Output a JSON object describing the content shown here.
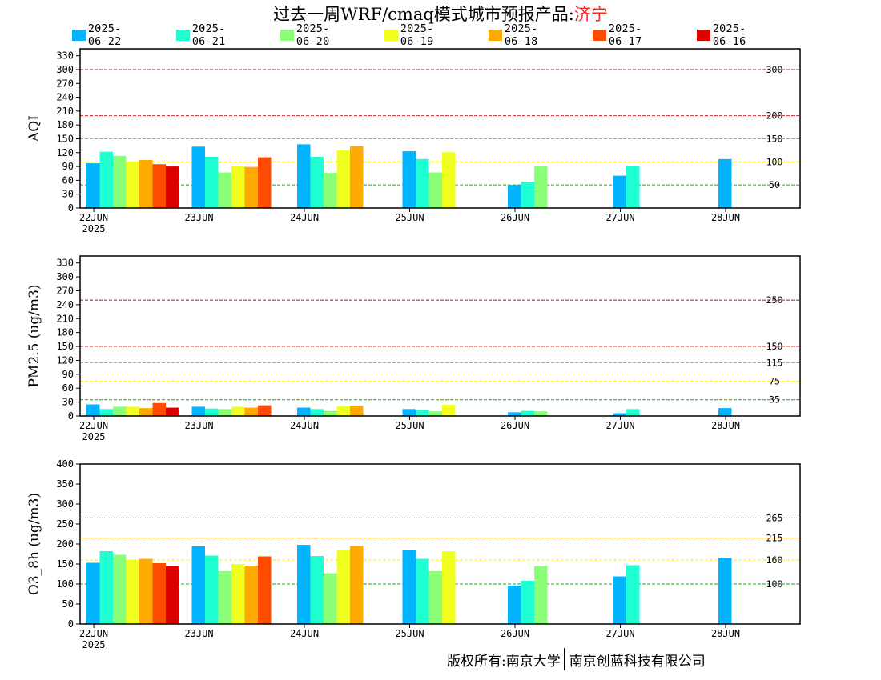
{
  "title": {
    "main": "过去一周WRF/cmaq模式城市预报产品:",
    "city": "济宁"
  },
  "legend": [
    {
      "label": "2025-06-22",
      "color": "#00b4ff"
    },
    {
      "label": "2025-06-21",
      "color": "#1effd2"
    },
    {
      "label": "2025-06-20",
      "color": "#8cff78"
    },
    {
      "label": "2025-06-19",
      "color": "#f0ff1e"
    },
    {
      "label": "2025-06-18",
      "color": "#ffaa00"
    },
    {
      "label": "2025-06-17",
      "color": "#ff4b00"
    },
    {
      "label": "2025-06-16",
      "color": "#dc0000"
    }
  ],
  "footer": {
    "left": "版权所有:南京大学",
    "right": "南京创蓝科技有限公司"
  },
  "chart_data": [
    {
      "type": "bar",
      "ylabel": "AQI",
      "ylim": [
        0,
        345
      ],
      "yticks": [
        0,
        30,
        60,
        90,
        120,
        150,
        180,
        210,
        240,
        270,
        300,
        330
      ],
      "categories": [
        "22JUN",
        "23JUN",
        "24JUN",
        "25JUN",
        "26JUN",
        "27JUN",
        "28JUN"
      ],
      "x_year_label": "2025",
      "thresholds": [
        {
          "value": 300,
          "label": "300",
          "color": "#a01050"
        },
        {
          "value": 200,
          "label": "200",
          "color": "#e02020"
        },
        {
          "value": 150,
          "label": "150",
          "color": "#ff8c00"
        },
        {
          "value": 100,
          "label": "100",
          "color": "#ffee00"
        },
        {
          "value": 50,
          "label": "50",
          "color": "#10b010"
        }
      ],
      "series": [
        {
          "name": "2025-06-22",
          "values": [
            97,
            133,
            138,
            123,
            50,
            70,
            106
          ]
        },
        {
          "name": "2025-06-21",
          "values": [
            122,
            111,
            111,
            106,
            57,
            92,
            null
          ]
        },
        {
          "name": "2025-06-20",
          "values": [
            113,
            77,
            76,
            77,
            90,
            null,
            null
          ]
        },
        {
          "name": "2025-06-19",
          "values": [
            100,
            92,
            125,
            121,
            null,
            null,
            null
          ]
        },
        {
          "name": "2025-06-18",
          "values": [
            104,
            89,
            134,
            null,
            null,
            null,
            null
          ]
        },
        {
          "name": "2025-06-17",
          "values": [
            95,
            110,
            null,
            null,
            null,
            null,
            null
          ]
        },
        {
          "name": "2025-06-16",
          "values": [
            90,
            null,
            null,
            null,
            null,
            null,
            null
          ]
        }
      ]
    },
    {
      "type": "bar",
      "ylabel": "PM2.5 (ug/m3)",
      "ylim": [
        0,
        345
      ],
      "yticks": [
        0,
        30,
        60,
        90,
        120,
        150,
        180,
        210,
        240,
        270,
        300,
        330
      ],
      "categories": [
        "22JUN",
        "23JUN",
        "24JUN",
        "25JUN",
        "26JUN",
        "27JUN",
        "28JUN"
      ],
      "x_year_label": "2025",
      "thresholds": [
        {
          "value": 250,
          "label": "250",
          "color": "#a01050"
        },
        {
          "value": 150,
          "label": "150",
          "color": "#e02020"
        },
        {
          "value": 115,
          "label": "115",
          "color": "#ff8c00"
        },
        {
          "value": 75,
          "label": "75",
          "color": "#ffee00"
        },
        {
          "value": 35,
          "label": "35",
          "color": "#10b010"
        }
      ],
      "series": [
        {
          "name": "2025-06-22",
          "values": [
            25,
            20,
            18,
            15,
            8,
            6,
            17
          ]
        },
        {
          "name": "2025-06-21",
          "values": [
            15,
            16,
            15,
            13,
            11,
            15,
            null
          ]
        },
        {
          "name": "2025-06-20",
          "values": [
            20,
            15,
            11,
            10,
            10,
            null,
            null
          ]
        },
        {
          "name": "2025-06-19",
          "values": [
            20,
            20,
            21,
            24,
            null,
            null,
            null
          ]
        },
        {
          "name": "2025-06-18",
          "values": [
            17,
            18,
            22,
            null,
            null,
            null,
            null
          ]
        },
        {
          "name": "2025-06-17",
          "values": [
            28,
            23,
            null,
            null,
            null,
            null,
            null
          ]
        },
        {
          "name": "2025-06-16",
          "values": [
            18,
            null,
            null,
            null,
            null,
            null,
            null
          ]
        }
      ]
    },
    {
      "type": "bar",
      "ylabel": "O3_8h (ug/m3)",
      "ylim": [
        0,
        400
      ],
      "yticks": [
        0,
        50,
        100,
        150,
        200,
        250,
        300,
        350,
        400
      ],
      "categories": [
        "22JUN",
        "23JUN",
        "24JUN",
        "25JUN",
        "26JUN",
        "27JUN",
        "28JUN"
      ],
      "x_year_label": "2025",
      "thresholds": [
        {
          "value": 265,
          "label": "265",
          "color": "#e02020"
        },
        {
          "value": 215,
          "label": "215",
          "color": "#ff8c00"
        },
        {
          "value": 160,
          "label": "160",
          "color": "#ffee00"
        },
        {
          "value": 100,
          "label": "100",
          "color": "#10b010"
        }
      ],
      "series": [
        {
          "name": "2025-06-22",
          "values": [
            153,
            194,
            198,
            184,
            96,
            119,
            165
          ]
        },
        {
          "name": "2025-06-21",
          "values": [
            182,
            171,
            170,
            163,
            108,
            147,
            null
          ]
        },
        {
          "name": "2025-06-20",
          "values": [
            173,
            132,
            127,
            132,
            145,
            null,
            null
          ]
        },
        {
          "name": "2025-06-19",
          "values": [
            160,
            150,
            186,
            182,
            null,
            null,
            null
          ]
        },
        {
          "name": "2025-06-18",
          "values": [
            163,
            146,
            195,
            null,
            null,
            null,
            null
          ]
        },
        {
          "name": "2025-06-17",
          "values": [
            152,
            169,
            null,
            null,
            null,
            null,
            null
          ]
        },
        {
          "name": "2025-06-16",
          "values": [
            145,
            null,
            null,
            null,
            null,
            null,
            null
          ]
        }
      ]
    }
  ]
}
